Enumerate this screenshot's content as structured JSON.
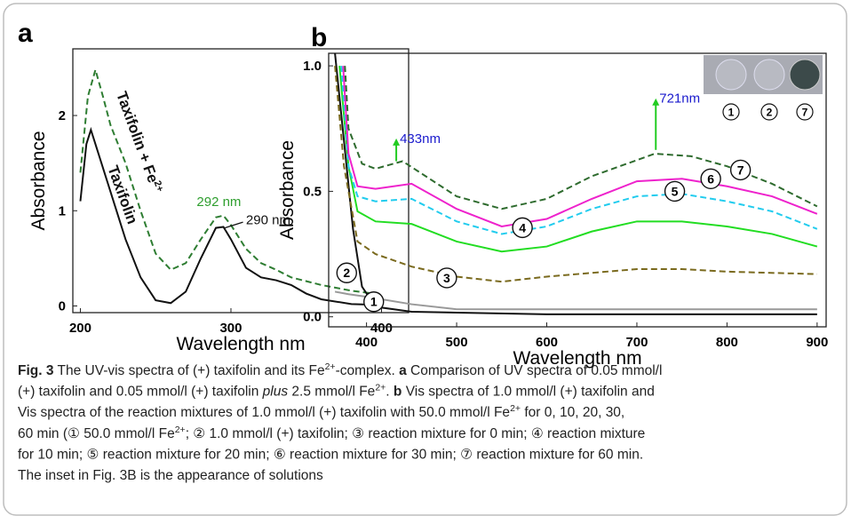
{
  "chart_data": [
    {
      "type": "line",
      "panel": "a",
      "xlabel": "Wavelength nm",
      "ylabel": "Absorbance",
      "xlim": [
        195,
        418
      ],
      "ylim": [
        -0.07,
        2.7
      ],
      "xticks": [
        200,
        300,
        400
      ],
      "yticks": [
        0,
        1,
        2
      ],
      "series": [
        {
          "name": "Taxifolin",
          "color": "#111111",
          "dashed": false,
          "x": [
            200,
            204,
            207,
            212,
            220,
            230,
            240,
            250,
            260,
            270,
            280,
            290,
            295,
            300,
            310,
            320,
            330,
            340,
            350,
            360,
            380,
            400
          ],
          "values": [
            1.1,
            1.7,
            1.85,
            1.6,
            1.2,
            0.7,
            0.3,
            0.06,
            0.03,
            0.15,
            0.5,
            0.82,
            0.83,
            0.7,
            0.4,
            0.3,
            0.27,
            0.22,
            0.13,
            0.07,
            0.02,
            0.01
          ]
        },
        {
          "name": "Taxifolin + Fe",
          "name_sup": "2+",
          "color": "#2e7d32",
          "dashed": true,
          "x": [
            200,
            205,
            210,
            215,
            220,
            230,
            240,
            250,
            260,
            270,
            280,
            290,
            295,
            300,
            310,
            320,
            330,
            340,
            360,
            380,
            400
          ],
          "values": [
            1.4,
            2.2,
            2.48,
            2.2,
            1.9,
            1.5,
            1.0,
            0.55,
            0.38,
            0.45,
            0.7,
            0.93,
            0.95,
            0.85,
            0.6,
            0.45,
            0.38,
            0.3,
            0.22,
            0.16,
            0.12
          ]
        }
      ],
      "annotations": [
        {
          "text": "292 nm",
          "color": "#2e9e2e"
        },
        {
          "text": "290 nm",
          "color": "#111111"
        }
      ]
    },
    {
      "type": "line",
      "panel": "b",
      "xlabel": "Wavelength nm",
      "ylabel": "Absorbance",
      "xlim": [
        358,
        910
      ],
      "ylim": [
        -0.04,
        1.05
      ],
      "xticks": [
        400,
        500,
        600,
        700,
        800,
        900
      ],
      "yticks": [
        {
          "value": 0,
          "label": "0.0"
        },
        0.5,
        {
          "value": 1,
          "label": "1.0"
        }
      ],
      "series": [
        {
          "name": "1",
          "color": "#999999",
          "dashed": false,
          "x": [
            365,
            380,
            400,
            450,
            500,
            600,
            700,
            800,
            900
          ],
          "values": [
            0.1,
            0.09,
            0.08,
            0.05,
            0.03,
            0.03,
            0.03,
            0.03,
            0.03
          ]
        },
        {
          "name": "2",
          "color": "#111111",
          "dashed": false,
          "x": [
            365,
            375,
            385,
            395,
            410,
            450,
            600,
            750,
            900
          ],
          "values": [
            1.05,
            0.7,
            0.35,
            0.12,
            0.04,
            0.02,
            0.01,
            0.01,
            0.01
          ]
        },
        {
          "name": "3",
          "color": "#7a6a1e",
          "dashed": true,
          "x": [
            365,
            375,
            390,
            410,
            450,
            500,
            550,
            600,
            700,
            750,
            800,
            900
          ],
          "values": [
            1.0,
            0.6,
            0.3,
            0.25,
            0.2,
            0.16,
            0.14,
            0.16,
            0.19,
            0.19,
            0.18,
            0.17
          ]
        },
        {
          "name": "4",
          "color": "#22dd22",
          "dashed": false,
          "x": [
            370,
            380,
            390,
            410,
            450,
            500,
            550,
            600,
            650,
            700,
            750,
            800,
            850,
            900
          ],
          "values": [
            1.0,
            0.6,
            0.42,
            0.38,
            0.37,
            0.3,
            0.26,
            0.28,
            0.34,
            0.38,
            0.38,
            0.36,
            0.33,
            0.28
          ]
        },
        {
          "name": "5",
          "color": "#22ccee",
          "dashed": true,
          "x": [
            372,
            380,
            390,
            410,
            450,
            500,
            550,
            600,
            650,
            700,
            750,
            800,
            850,
            900
          ],
          "values": [
            1.0,
            0.6,
            0.48,
            0.46,
            0.47,
            0.38,
            0.33,
            0.36,
            0.43,
            0.48,
            0.49,
            0.46,
            0.42,
            0.35
          ]
        },
        {
          "name": "6",
          "color": "#ee22cc",
          "dashed": false,
          "x": [
            374,
            380,
            390,
            410,
            450,
            500,
            550,
            600,
            650,
            700,
            750,
            800,
            850,
            900
          ],
          "values": [
            1.0,
            0.65,
            0.52,
            0.51,
            0.53,
            0.43,
            0.36,
            0.39,
            0.47,
            0.54,
            0.55,
            0.52,
            0.48,
            0.41
          ]
        },
        {
          "name": "7",
          "color": "#2e6b2e",
          "dashed": true,
          "x": [
            376,
            380,
            395,
            410,
            440,
            500,
            550,
            600,
            650,
            720,
            760,
            800,
            850,
            900
          ],
          "values": [
            1.0,
            0.75,
            0.61,
            0.59,
            0.62,
            0.48,
            0.43,
            0.47,
            0.56,
            0.65,
            0.64,
            0.6,
            0.53,
            0.44
          ]
        }
      ],
      "annotations": [
        {
          "text": "433nm",
          "color": "#1a1acd"
        },
        {
          "text": "721nm",
          "color": "#1a1acd"
        }
      ]
    }
  ],
  "caption": {
    "lines": [
      [
        {
          "text": "Fig. 3",
          "style": "bold"
        },
        {
          "text": " The UV-vis spectra of (+) taxifolin and its Fe"
        },
        {
          "text": "2+",
          "style": "sup"
        },
        {
          "text": "-complex. "
        },
        {
          "text": "a",
          "style": "bold"
        },
        {
          "text": " Comparison of UV spectra of 0.05 mmol/l"
        }
      ],
      [
        {
          "text": "(+) taxifolin and 0.05 mmol/l (+) taxifolin "
        },
        {
          "text": "plus",
          "style": "italic"
        },
        {
          "text": " 2.5 mmol/l Fe"
        },
        {
          "text": "2+",
          "style": "sup"
        },
        {
          "text": ". "
        },
        {
          "text": "b",
          "style": "bold"
        },
        {
          "text": " Vis spectra of 1.0 mmol/l (+) taxifolin and"
        }
      ],
      [
        {
          "text": "Vis spectra of the reaction mixtures of 1.0 mmol/l (+) taxifolin with 50.0 mmol/l Fe"
        },
        {
          "text": "2+",
          "style": "sup"
        },
        {
          "text": " for 0, 10, 20, 30,"
        }
      ],
      [
        {
          "text": "60 min (① 50.0 mmol/l Fe"
        },
        {
          "text": "2+",
          "style": "sup"
        },
        {
          "text": "; ② 1.0 mmol/l (+) taxifolin; ③ reaction mixture for 0 min; ④ reaction mixture"
        }
      ],
      [
        {
          "text": "for 10 min; ⑤ reaction mixture for 20 min; ⑥ reaction mixture for 30 min; ⑦ reaction mixture for 60 min."
        }
      ],
      [
        {
          "text": "The inset in Fig. 3B is the appearance of solutions"
        }
      ]
    ]
  }
}
